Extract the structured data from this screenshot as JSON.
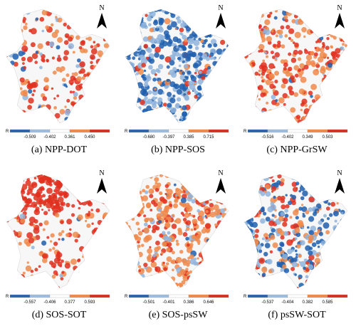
{
  "north_label": "N",
  "colorbar_label": "R",
  "panels": [
    {
      "caption": "(a) NPP-DOT",
      "ticks": [
        "-0.509",
        "-0.402",
        "0.361",
        "0.450"
      ]
    },
    {
      "caption": "(b) NPP-SOS",
      "ticks": [
        "-0.680",
        "-0.397",
        "0.385",
        "0.715"
      ]
    },
    {
      "caption": "(c) NPP-GrSW",
      "ticks": [
        "-0.516",
        "-0.402",
        "0.349",
        "0.503"
      ]
    },
    {
      "caption": "(d) SOS-SOT",
      "ticks": [
        "-0.557",
        "-0.406",
        "0.377",
        "0.593"
      ]
    },
    {
      "caption": "(e) SOS-psSW",
      "ticks": [
        "-0.501",
        "-0.401",
        "0.386",
        "0.646"
      ]
    },
    {
      "caption": "(f) psSW-SOT",
      "ticks": [
        "-0.537",
        "-0.404",
        "0.382",
        "0.585"
      ]
    }
  ]
}
